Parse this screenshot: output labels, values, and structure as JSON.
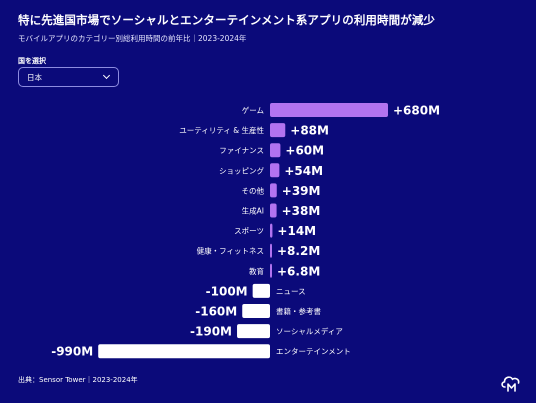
{
  "header": {
    "title": "特に先進国市場でソーシャルとエンターテインメント系アプリの利用時間が減少",
    "subtitle": "モバイルアプリのカテゴリー別総利用時間の前年比｜2023-2024年"
  },
  "filter": {
    "label": "国を選択",
    "selected": "日本"
  },
  "footer": {
    "source": "出典：Sensor Tower｜2023-2024年"
  },
  "logo": {
    "icon": "cloud-m-icon"
  },
  "colors": {
    "background": "#0b0a7a",
    "positive_bar": "#b273f0",
    "negative_bar": "#ffffff",
    "text": "#ffffff"
  },
  "chart_data": {
    "type": "bar",
    "orientation": "horizontal",
    "unit": "M",
    "categories": [
      "ゲーム",
      "ユーティリティ & 生産性",
      "ファイナンス",
      "ショッピング",
      "その他",
      "生成AI",
      "スポーツ",
      "健康・フィットネス",
      "教育",
      "ニュース",
      "書籍・参考書",
      "ソーシャルメディア",
      "エンターテインメント"
    ],
    "values": [
      680,
      88,
      60,
      54,
      39,
      38,
      14,
      8.2,
      6.8,
      -100,
      -160,
      -190,
      -990
    ],
    "value_labels": [
      "+680M",
      "+88M",
      "+60M",
      "+54M",
      "+39M",
      "+38M",
      "+14M",
      "+8.2M",
      "+6.8M",
      "-100M",
      "-160M",
      "-190M",
      "-990M"
    ],
    "xlim": [
      -1000,
      700
    ],
    "grid": false,
    "title": "",
    "xlabel": "",
    "ylabel": ""
  }
}
